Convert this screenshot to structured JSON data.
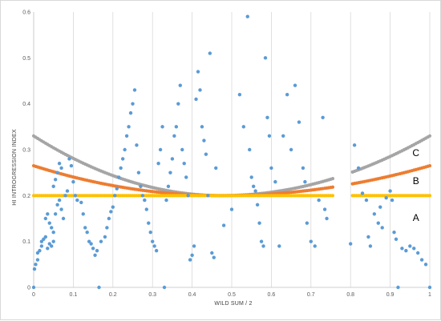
{
  "chart_data": {
    "type": "scatter",
    "title": "",
    "xlabel": "WILD SUM / 2",
    "ylabel": "HI INTROGRESSION INDEX",
    "xlim": [
      0,
      1
    ],
    "ylim": [
      0,
      0.6
    ],
    "x_ticks": [
      0,
      0.1,
      0.2,
      0.3,
      0.4,
      0.5,
      0.6,
      0.7,
      0.8,
      0.9,
      1
    ],
    "x_tick_labels": [
      "0",
      "0.1",
      "0.2",
      "0.3",
      "0.4",
      "0.5",
      "0.6",
      "0.7",
      "0.8",
      "0.9",
      "1"
    ],
    "y_ticks": [
      0,
      0.1,
      0.2,
      0.3,
      0.4,
      0.5,
      0.6
    ],
    "y_tick_labels": [
      "0",
      "0.1",
      "0.2",
      "0.3",
      "0.4",
      "0.5",
      "0.6"
    ],
    "grid": "vertical",
    "colors": {
      "observed": "#5b9bd5",
      "A": "#ffc000",
      "B": "#ed7d31",
      "C": "#a5a5a5",
      "grid": "#d9d9d9",
      "axis": "#bfbfbf"
    },
    "curve_labels": [
      {
        "text": "A",
        "x": 0.965,
        "y": 0.152
      },
      {
        "text": "B",
        "x": 0.965,
        "y": 0.232
      },
      {
        "text": "C",
        "x": 0.965,
        "y": 0.293
      }
    ],
    "curve_gaps": [
      [
        0.755,
        0.805
      ]
    ],
    "curve_shapes": {
      "A": {
        "type": "constant",
        "value": 0.2
      },
      "B": {
        "type": "bowl",
        "floor": 0.2,
        "end": 0.265,
        "center": 0.475
      },
      "C": {
        "type": "bowl",
        "floor": 0.2,
        "end": 0.33,
        "center": 0.475
      }
    },
    "series": [
      {
        "values": [
          [
            0.0,
            0.0
          ],
          [
            0.002,
            0.04
          ],
          [
            0.005,
            0.05
          ],
          [
            0.01,
            0.06
          ],
          [
            0.01,
            0.075
          ],
          [
            0.015,
            0.08
          ],
          [
            0.02,
            0.09
          ],
          [
            0.02,
            0.1
          ],
          [
            0.025,
            0.105
          ],
          [
            0.03,
            0.11
          ],
          [
            0.035,
            0.085
          ],
          [
            0.04,
            0.095
          ],
          [
            0.045,
            0.09
          ],
          [
            0.05,
            0.1
          ],
          [
            0.03,
            0.15
          ],
          [
            0.035,
            0.16
          ],
          [
            0.04,
            0.14
          ],
          [
            0.045,
            0.13
          ],
          [
            0.05,
            0.12
          ],
          [
            0.055,
            0.16
          ],
          [
            0.06,
            0.18
          ],
          [
            0.065,
            0.19
          ],
          [
            0.07,
            0.17
          ],
          [
            0.075,
            0.15
          ],
          [
            0.08,
            0.2
          ],
          [
            0.085,
            0.21
          ],
          [
            0.05,
            0.22
          ],
          [
            0.055,
            0.235
          ],
          [
            0.06,
            0.25
          ],
          [
            0.065,
            0.27
          ],
          [
            0.07,
            0.26
          ],
          [
            0.09,
            0.28
          ],
          [
            0.095,
            0.265
          ],
          [
            0.1,
            0.23
          ],
          [
            0.105,
            0.2
          ],
          [
            0.11,
            0.19
          ],
          [
            0.12,
            0.185
          ],
          [
            0.125,
            0.16
          ],
          [
            0.13,
            0.13
          ],
          [
            0.135,
            0.12
          ],
          [
            0.14,
            0.1
          ],
          [
            0.145,
            0.095
          ],
          [
            0.15,
            0.085
          ],
          [
            0.155,
            0.07
          ],
          [
            0.16,
            0.08
          ],
          [
            0.165,
            0.0
          ],
          [
            0.17,
            0.1
          ],
          [
            0.18,
            0.11
          ],
          [
            0.185,
            0.13
          ],
          [
            0.19,
            0.15
          ],
          [
            0.195,
            0.165
          ],
          [
            0.2,
            0.175
          ],
          [
            0.205,
            0.2
          ],
          [
            0.21,
            0.215
          ],
          [
            0.215,
            0.24
          ],
          [
            0.22,
            0.26
          ],
          [
            0.225,
            0.28
          ],
          [
            0.23,
            0.3
          ],
          [
            0.235,
            0.33
          ],
          [
            0.24,
            0.35
          ],
          [
            0.245,
            0.38
          ],
          [
            0.25,
            0.4
          ],
          [
            0.255,
            0.43
          ],
          [
            0.26,
            0.31
          ],
          [
            0.265,
            0.25
          ],
          [
            0.27,
            0.22
          ],
          [
            0.275,
            0.2
          ],
          [
            0.28,
            0.19
          ],
          [
            0.285,
            0.17
          ],
          [
            0.29,
            0.14
          ],
          [
            0.295,
            0.12
          ],
          [
            0.3,
            0.1
          ],
          [
            0.305,
            0.09
          ],
          [
            0.31,
            0.08
          ],
          [
            0.315,
            0.27
          ],
          [
            0.32,
            0.3
          ],
          [
            0.325,
            0.35
          ],
          [
            0.33,
            0.0
          ],
          [
            0.335,
            0.19
          ],
          [
            0.34,
            0.22
          ],
          [
            0.345,
            0.25
          ],
          [
            0.35,
            0.28
          ],
          [
            0.355,
            0.33
          ],
          [
            0.36,
            0.35
          ],
          [
            0.365,
            0.4
          ],
          [
            0.37,
            0.44
          ],
          [
            0.375,
            0.3
          ],
          [
            0.38,
            0.27
          ],
          [
            0.385,
            0.24
          ],
          [
            0.39,
            0.2
          ],
          [
            0.395,
            0.06
          ],
          [
            0.4,
            0.07
          ],
          [
            0.405,
            0.09
          ],
          [
            0.41,
            0.41
          ],
          [
            0.415,
            0.47
          ],
          [
            0.42,
            0.43
          ],
          [
            0.425,
            0.35
          ],
          [
            0.43,
            0.32
          ],
          [
            0.435,
            0.29
          ],
          [
            0.44,
            0.2
          ],
          [
            0.445,
            0.51
          ],
          [
            0.45,
            0.075
          ],
          [
            0.455,
            0.065
          ],
          [
            0.46,
            0.26
          ],
          [
            0.48,
            0.135
          ],
          [
            0.5,
            0.17
          ],
          [
            0.52,
            0.42
          ],
          [
            0.53,
            0.35
          ],
          [
            0.54,
            0.59
          ],
          [
            0.545,
            0.3
          ],
          [
            0.55,
            0.24
          ],
          [
            0.555,
            0.22
          ],
          [
            0.56,
            0.21
          ],
          [
            0.565,
            0.18
          ],
          [
            0.57,
            0.14
          ],
          [
            0.575,
            0.1
          ],
          [
            0.58,
            0.09
          ],
          [
            0.585,
            0.5
          ],
          [
            0.59,
            0.37
          ],
          [
            0.595,
            0.33
          ],
          [
            0.6,
            0.26
          ],
          [
            0.61,
            0.23
          ],
          [
            0.62,
            0.09
          ],
          [
            0.63,
            0.33
          ],
          [
            0.64,
            0.42
          ],
          [
            0.65,
            0.3
          ],
          [
            0.66,
            0.44
          ],
          [
            0.67,
            0.36
          ],
          [
            0.68,
            0.26
          ],
          [
            0.685,
            0.23
          ],
          [
            0.69,
            0.14
          ],
          [
            0.7,
            0.1
          ],
          [
            0.71,
            0.09
          ],
          [
            0.72,
            0.19
          ],
          [
            0.73,
            0.37
          ],
          [
            0.735,
            0.17
          ],
          [
            0.74,
            0.15
          ],
          [
            0.8,
            0.095
          ],
          [
            0.81,
            0.31
          ],
          [
            0.82,
            0.26
          ],
          [
            0.83,
            0.205
          ],
          [
            0.84,
            0.19
          ],
          [
            0.845,
            0.11
          ],
          [
            0.85,
            0.09
          ],
          [
            0.86,
            0.16
          ],
          [
            0.87,
            0.14
          ],
          [
            0.875,
            0.175
          ],
          [
            0.88,
            0.13
          ],
          [
            0.89,
            0.195
          ],
          [
            0.9,
            0.21
          ],
          [
            0.905,
            0.19
          ],
          [
            0.91,
            0.12
          ],
          [
            0.915,
            0.105
          ],
          [
            0.92,
            0.0
          ],
          [
            0.93,
            0.085
          ],
          [
            0.94,
            0.08
          ],
          [
            0.95,
            0.09
          ],
          [
            0.96,
            0.085
          ],
          [
            0.97,
            0.075
          ],
          [
            0.98,
            0.06
          ],
          [
            0.99,
            0.05
          ],
          [
            1.0,
            0.0
          ]
        ]
      }
    ]
  }
}
